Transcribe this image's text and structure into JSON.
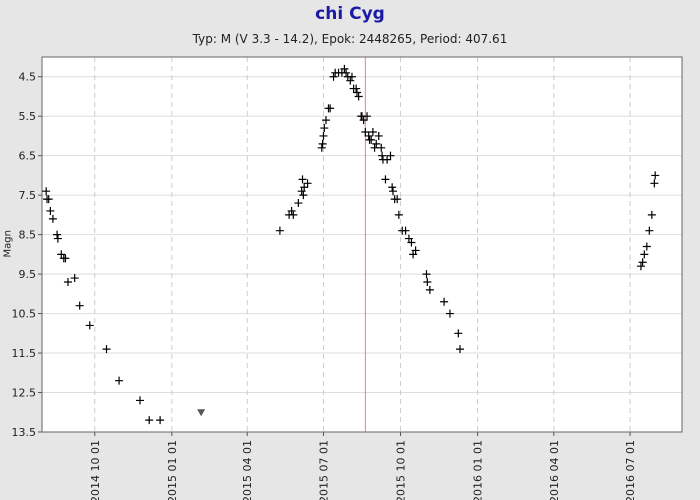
{
  "chart_data": {
    "type": "scatter",
    "title": "chi Cyg",
    "subtitle": "Typ: M (V 3.3 - 14.2), Epok: 2448265, Period: 407.61",
    "ylabel": "Magn",
    "y_inverted": true,
    "ylim": [
      4.0,
      13.5
    ],
    "yticks": [
      4.5,
      5.5,
      6.5,
      7.5,
      8.5,
      9.5,
      10.5,
      11.5,
      12.5,
      13.5
    ],
    "xlim": [
      "2014-07-30",
      "2016-09-01"
    ],
    "xticks": [
      "2014 10 01",
      "2015 01 01",
      "2015 04 01",
      "2015 07 01",
      "2015 10 01",
      "2016 01 01",
      "2016 04 01",
      "2016 07 01"
    ],
    "grid": true,
    "maximum_marker_date": "2015-08-20",
    "series": [
      {
        "marker": "plus",
        "points": [
          [
            "2014-08-04",
            7.4
          ],
          [
            "2014-08-05",
            7.6
          ],
          [
            "2014-08-07",
            7.6
          ],
          [
            "2014-08-09",
            7.9
          ],
          [
            "2014-08-12",
            8.1
          ],
          [
            "2014-08-17",
            8.5
          ],
          [
            "2014-08-18",
            8.6
          ],
          [
            "2014-08-22",
            9.0
          ],
          [
            "2014-08-25",
            9.1
          ],
          [
            "2014-08-27",
            9.1
          ],
          [
            "2014-08-30",
            9.7
          ],
          [
            "2014-09-07",
            9.6
          ],
          [
            "2014-09-13",
            10.3
          ],
          [
            "2014-09-25",
            10.8
          ],
          [
            "2014-10-15",
            11.4
          ],
          [
            "2014-10-30",
            12.2
          ],
          [
            "2014-11-24",
            12.7
          ],
          [
            "2014-12-05",
            13.2
          ],
          [
            "2014-12-18",
            13.2
          ],
          [
            "2015-05-10",
            8.4
          ],
          [
            "2015-05-21",
            8.0
          ],
          [
            "2015-05-24",
            7.9
          ],
          [
            "2015-05-26",
            8.0
          ],
          [
            "2015-06-01",
            7.7
          ],
          [
            "2015-06-05",
            7.4
          ],
          [
            "2015-06-06",
            7.1
          ],
          [
            "2015-06-07",
            7.5
          ],
          [
            "2015-06-08",
            7.3
          ],
          [
            "2015-06-12",
            7.2
          ],
          [
            "2015-06-29",
            6.3
          ],
          [
            "2015-06-30",
            6.2
          ],
          [
            "2015-07-01",
            6.0
          ],
          [
            "2015-07-02",
            5.8
          ],
          [
            "2015-07-04",
            5.6
          ],
          [
            "2015-07-07",
            5.3
          ],
          [
            "2015-07-09",
            5.3
          ],
          [
            "2015-07-13",
            4.5
          ],
          [
            "2015-07-15",
            4.4
          ],
          [
            "2015-07-19",
            4.4
          ],
          [
            "2015-07-23",
            4.4
          ],
          [
            "2015-07-26",
            4.3
          ],
          [
            "2015-07-28",
            4.4
          ],
          [
            "2015-07-30",
            4.5
          ],
          [
            "2015-08-02",
            4.6
          ],
          [
            "2015-08-04",
            4.5
          ],
          [
            "2015-08-06",
            4.8
          ],
          [
            "2015-08-09",
            4.8
          ],
          [
            "2015-08-10",
            4.9
          ],
          [
            "2015-08-12",
            5.0
          ],
          [
            "2015-08-15",
            5.5
          ],
          [
            "2015-08-16",
            5.5
          ],
          [
            "2015-08-18",
            5.6
          ],
          [
            "2015-08-20",
            5.9
          ],
          [
            "2015-08-22",
            5.5
          ],
          [
            "2015-08-24",
            6.0
          ],
          [
            "2015-08-25",
            6.1
          ],
          [
            "2015-08-27",
            6.1
          ],
          [
            "2015-08-29",
            5.9
          ],
          [
            "2015-08-31",
            6.3
          ],
          [
            "2015-09-02",
            6.2
          ],
          [
            "2015-09-05",
            6.0
          ],
          [
            "2015-09-08",
            6.3
          ],
          [
            "2015-09-09",
            6.5
          ],
          [
            "2015-09-10",
            6.6
          ],
          [
            "2015-09-15",
            6.6
          ],
          [
            "2015-09-19",
            6.5
          ],
          [
            "2015-09-13",
            7.1
          ],
          [
            "2015-09-21",
            7.3
          ],
          [
            "2015-09-22",
            7.4
          ],
          [
            "2015-09-24",
            7.6
          ],
          [
            "2015-09-27",
            7.6
          ],
          [
            "2015-09-29",
            8.0
          ],
          [
            "2015-10-03",
            8.4
          ],
          [
            "2015-10-07",
            8.4
          ],
          [
            "2015-10-11",
            8.6
          ],
          [
            "2015-10-14",
            8.7
          ],
          [
            "2015-10-16",
            9.0
          ],
          [
            "2015-10-19",
            8.9
          ],
          [
            "2015-11-01",
            9.5
          ],
          [
            "2015-11-02",
            9.7
          ],
          [
            "2015-11-05",
            9.9
          ],
          [
            "2015-11-22",
            10.2
          ],
          [
            "2015-11-29",
            10.5
          ],
          [
            "2015-12-09",
            11.0
          ],
          [
            "2015-12-11",
            11.4
          ],
          [
            "2016-07-14",
            9.3
          ],
          [
            "2016-07-16",
            9.2
          ],
          [
            "2016-07-18",
            9.0
          ],
          [
            "2016-07-21",
            8.8
          ],
          [
            "2016-07-24",
            8.4
          ],
          [
            "2016-07-27",
            8.0
          ],
          [
            "2016-07-30",
            7.2
          ],
          [
            "2016-07-31",
            7.0
          ]
        ]
      },
      {
        "marker": "triangle-down",
        "note": "fainter than",
        "points": [
          [
            "2015-02-05",
            13.0
          ]
        ]
      }
    ]
  }
}
